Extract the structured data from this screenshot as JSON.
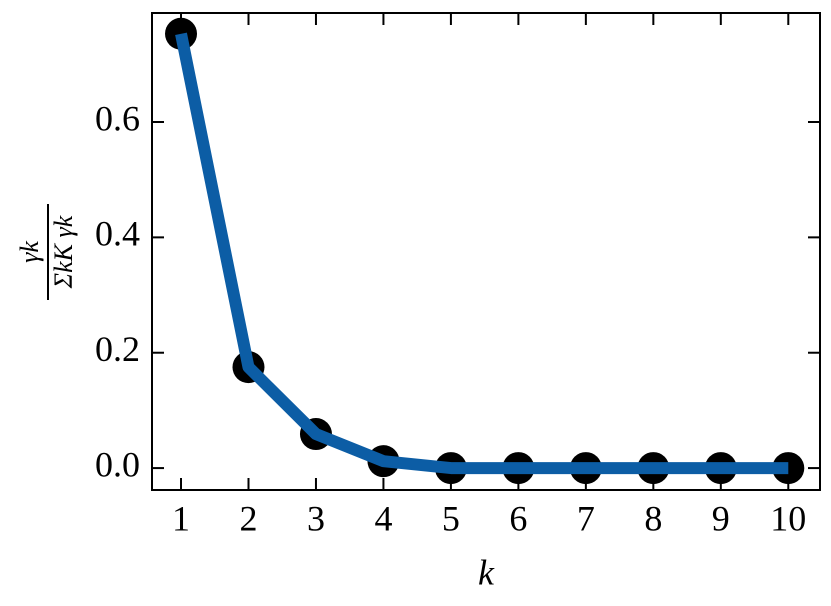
{
  "chart_data": {
    "type": "line",
    "xlabel": "k",
    "ylabel": {
      "numerator": "γk",
      "denominator": "ΣkK γk"
    },
    "x": [
      1,
      2,
      3,
      4,
      5,
      6,
      7,
      8,
      9,
      10
    ],
    "series": [
      {
        "values": [
          0.753,
          0.175,
          0.059,
          0.012,
          0,
          0,
          0,
          0,
          0,
          0
        ],
        "color": "#0c5da5",
        "marker_color": "#000000"
      }
    ],
    "xlim": [
      0.57,
      10.47
    ],
    "ylim": [
      -0.038,
      0.789
    ],
    "xticks": [
      1,
      2,
      3,
      4,
      5,
      6,
      7,
      8,
      9,
      10
    ],
    "yticks": [
      {
        "value": 0,
        "label": "0.0"
      },
      0.2,
      0.4,
      0.6
    ],
    "grid": false
  }
}
